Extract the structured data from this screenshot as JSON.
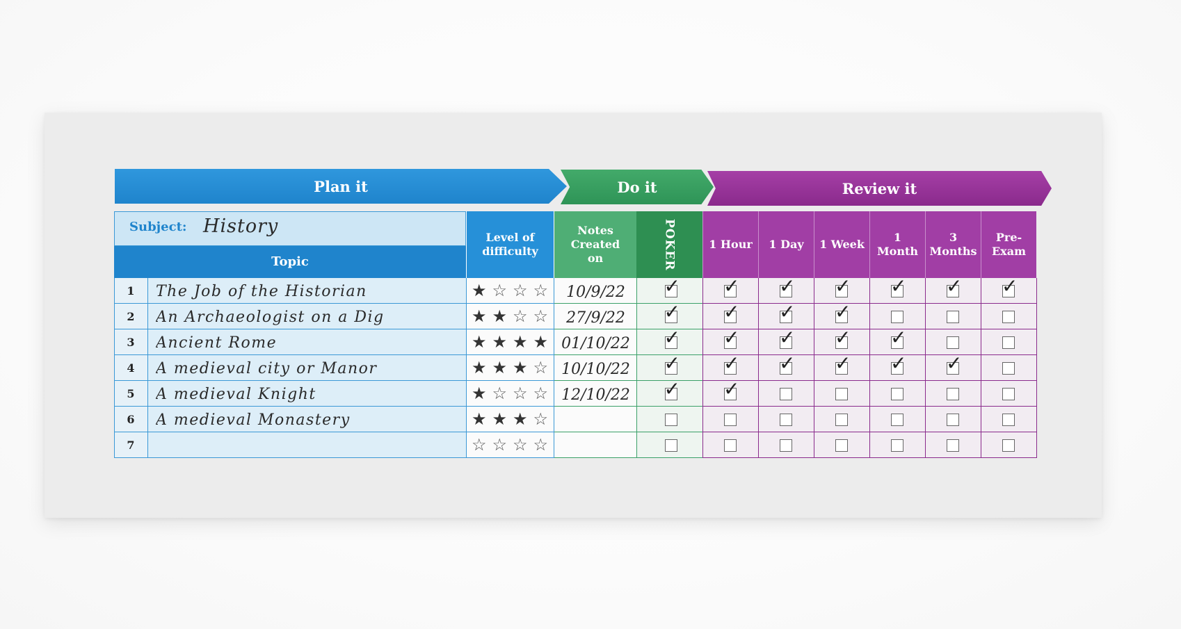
{
  "bands": {
    "plan": "Plan it",
    "do": "Do it",
    "review": "Review it"
  },
  "subject": {
    "label": "Subject:",
    "value": "History"
  },
  "headers": {
    "topic": "Topic",
    "difficulty": "Level of difficulty",
    "notes": "Notes Created on",
    "poker": "POKER",
    "review": [
      "1 Hour",
      "1 Day",
      "1 Week",
      "1 Month",
      "3 Months",
      "Pre-Exam"
    ]
  },
  "rows": [
    {
      "num": "1",
      "topic": "The Job of the Historian",
      "stars": 1,
      "date": "10/9/22",
      "poker": true,
      "review": [
        true,
        true,
        true,
        true,
        true,
        true
      ]
    },
    {
      "num": "2",
      "topic": "An Archaeologist on a Dig",
      "stars": 2,
      "date": "27/9/22",
      "poker": true,
      "review": [
        true,
        true,
        true,
        false,
        false,
        false
      ]
    },
    {
      "num": "3",
      "topic": "Ancient Rome",
      "stars": 4,
      "date": "01/10/22",
      "poker": true,
      "review": [
        true,
        true,
        true,
        true,
        false,
        false
      ]
    },
    {
      "num": "4",
      "topic": "A medieval city or Manor",
      "stars": 3,
      "date": "10/10/22",
      "poker": true,
      "review": [
        true,
        true,
        true,
        true,
        true,
        false
      ]
    },
    {
      "num": "5",
      "topic": "A medieval Knight",
      "stars": 1,
      "date": "12/10/22",
      "poker": true,
      "review": [
        true,
        false,
        false,
        false,
        false,
        false
      ]
    },
    {
      "num": "6",
      "topic": "A medieval Monastery",
      "stars": 3,
      "date": "",
      "poker": false,
      "review": [
        false,
        false,
        false,
        false,
        false,
        false
      ]
    },
    {
      "num": "7",
      "topic": "",
      "stars": 0,
      "date": "",
      "poker": false,
      "review": [
        false,
        false,
        false,
        false,
        false,
        false
      ]
    }
  ],
  "colors": {
    "plan": "#1f84cc",
    "do": "#2e9457",
    "review": "#8a2a8c"
  }
}
